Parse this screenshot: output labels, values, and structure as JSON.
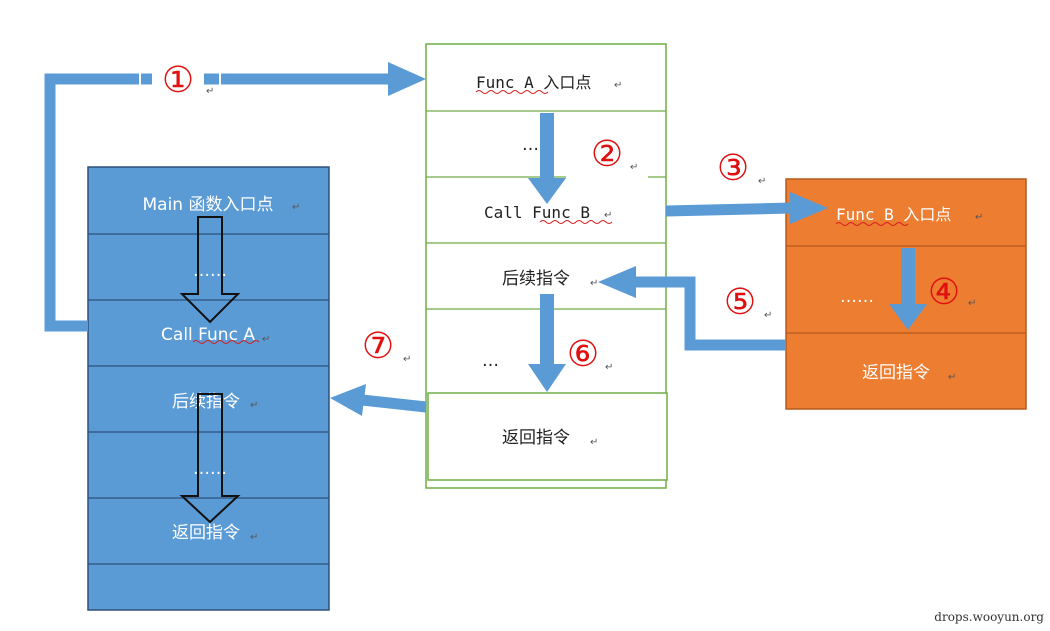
{
  "main_stack": {
    "entry": "Main 函数入口点",
    "dots_1": "……",
    "call": "Call Func A",
    "next": "后续指令",
    "dots_2": "……",
    "ret": "返回指令"
  },
  "func_a": {
    "entry": "Func A 入口点",
    "dots_1": "……",
    "call": "Call Func B",
    "next": "后续指令",
    "dots_2": "…",
    "ret": "返回指令"
  },
  "func_b": {
    "entry": "Func B 入口点",
    "dots": "……",
    "ret": "返回指令"
  },
  "steps": [
    "①",
    "②",
    "③",
    "④",
    "⑤",
    "⑥",
    "⑦"
  ],
  "paragraph_mark": "↵",
  "watermark": "drops.wooyun.org",
  "colors": {
    "main_fill": "#5b9bd5",
    "main_border": "#2e4f7a",
    "func_a_border": "#70ad47",
    "func_b_fill": "#ed7d31",
    "func_b_border": "#b65a1e",
    "arrow": "#5b9bd5",
    "step": "#e01010"
  }
}
